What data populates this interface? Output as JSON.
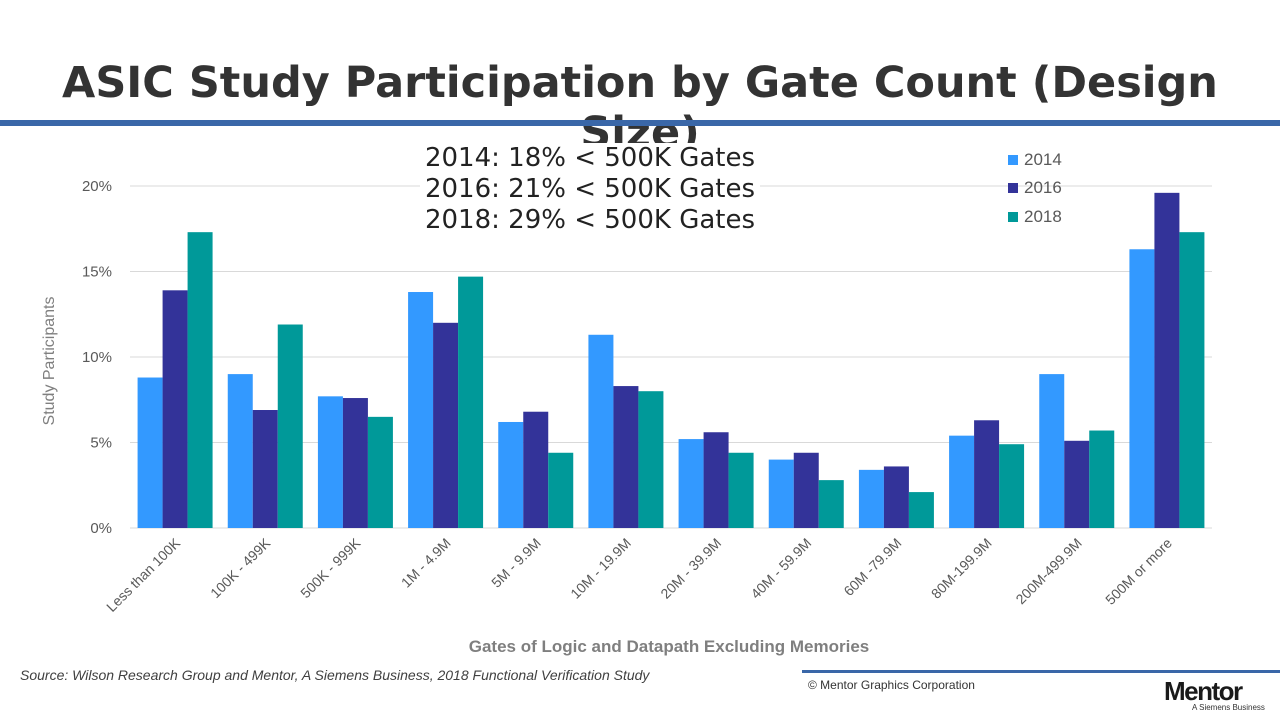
{
  "slide": {
    "title": "ASIC Study Participation by Gate Count (Design Size)",
    "callout": [
      "2014: 18% < 500K Gates",
      "2016: 21% < 500K Gates",
      "2018: 29% < 500K Gates"
    ],
    "source": "Source:  Wilson Research Group and Mentor, A Siemens Business, 2018 Functional Verification Study",
    "copyright": "© Mentor Graphics Corporation",
    "brand": "Mentor",
    "brand_sub": "A Siemens Business",
    "accent_color": "#3a67a8"
  },
  "chart_data": {
    "type": "bar",
    "xlabel": "Gates of Logic and Datapath Excluding Memories",
    "ylabel": "Study Participants",
    "ylim": [
      0,
      20
    ],
    "yticks": [
      0,
      5,
      10,
      15,
      20
    ],
    "ytick_labels": [
      "0%",
      "5%",
      "10%",
      "15%",
      "20%"
    ],
    "grid": true,
    "legend_position": "top-right",
    "categories": [
      "Less than 100K",
      "100K - 499K",
      "500K - 999K",
      "1M - 4.9M",
      "5M - 9.9M",
      "10M - 19.9M",
      "20M - 39.9M",
      "40M - 59.9M",
      "60M -79.9M",
      "80M-199.9M",
      "200M-499.9M",
      "500M or more"
    ],
    "series": [
      {
        "name": "2014",
        "color": "#3399ff",
        "values": [
          8.8,
          9.0,
          7.7,
          13.8,
          6.2,
          11.3,
          5.2,
          4.0,
          3.4,
          5.4,
          9.0,
          16.3
        ]
      },
      {
        "name": "2016",
        "color": "#333399",
        "values": [
          13.9,
          6.9,
          7.6,
          12.0,
          6.8,
          8.3,
          5.6,
          4.4,
          3.6,
          6.3,
          5.1,
          19.6
        ]
      },
      {
        "name": "2018",
        "color": "#009999",
        "values": [
          17.3,
          11.9,
          6.5,
          14.7,
          4.4,
          8.0,
          4.4,
          2.8,
          2.1,
          4.9,
          5.7,
          17.3
        ]
      }
    ]
  }
}
